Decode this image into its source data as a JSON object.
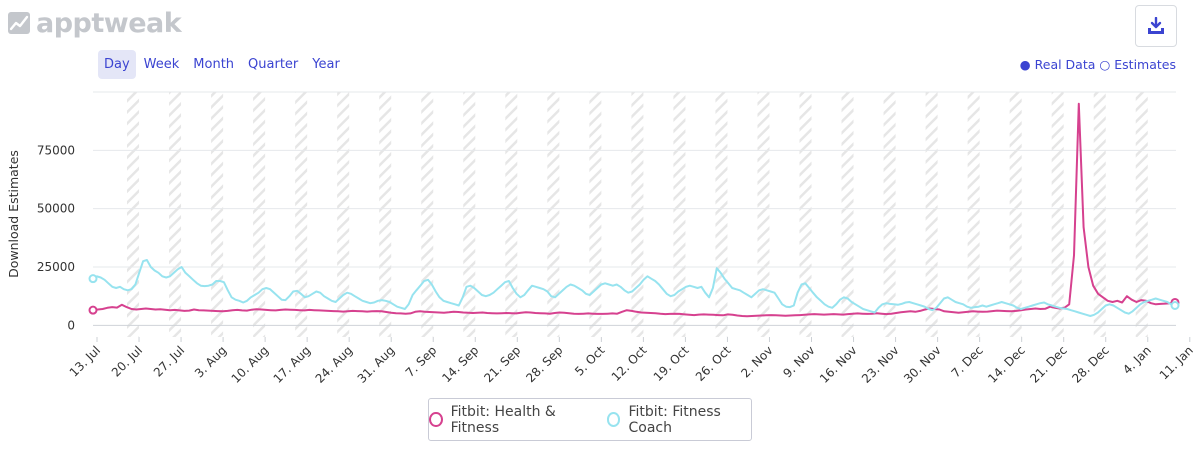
{
  "brand": {
    "name": "apptweak"
  },
  "toolbar": {
    "periods": [
      "Day",
      "Week",
      "Month",
      "Quarter",
      "Year"
    ],
    "active_period": "Day",
    "download_icon": "download-icon"
  },
  "legend_note": {
    "real": "● Real Data",
    "est": "○ Estimates"
  },
  "colors": {
    "fitbit": "#d6418f",
    "coach": "#97e3ef",
    "accent": "#3b44d1"
  },
  "chart_data": {
    "type": "line",
    "ylabel": "Download Estimates",
    "yticks": [
      0,
      25000,
      50000,
      75000
    ],
    "ylim": [
      -5000,
      100000
    ],
    "xlabel": "",
    "xticks": [
      "13. Jul",
      "20. Jul",
      "27. Jul",
      "3. Aug",
      "10. Aug",
      "17. Aug",
      "24. Aug",
      "31. Aug",
      "7. Sep",
      "14. Sep",
      "21. Sep",
      "28. Sep",
      "5. Oct",
      "12. Oct",
      "19. Oct",
      "26. Oct",
      "2. Nov",
      "9. Nov",
      "16. Nov",
      "23. Nov",
      "30. Nov",
      "7. Dec",
      "14. Dec",
      "21. Dec",
      "28. Dec",
      "4. Jan",
      "11. Jan"
    ],
    "x_start": "13. Jul",
    "x_end": "12. Jan",
    "series": [
      {
        "name": "Fitbit: Health & Fitness",
        "color": "#d6418f",
        "values": [
          6500,
          6800,
          7000,
          7500,
          7800,
          7600,
          8800,
          7800,
          7000,
          6800,
          7000,
          7200,
          7000,
          6800,
          6900,
          6700,
          6500,
          6600,
          6400,
          6200,
          6300,
          6800,
          6500,
          6400,
          6300,
          6200,
          6100,
          6000,
          6200,
          6500,
          6600,
          6400,
          6300,
          6700,
          6900,
          6800,
          6600,
          6500,
          6400,
          6600,
          6800,
          6700,
          6600,
          6500,
          6400,
          6600,
          6500,
          6400,
          6300,
          6200,
          6100,
          6000,
          5900,
          6000,
          6200,
          6100,
          6000,
          5900,
          6000,
          6100,
          6000,
          5700,
          5400,
          5200,
          5100,
          5000,
          5100,
          5800,
          6000,
          5800,
          5700,
          5600,
          5500,
          5400,
          5600,
          5800,
          5700,
          5500,
          5400,
          5300,
          5400,
          5500,
          5300,
          5200,
          5100,
          5200,
          5300,
          5200,
          5100,
          5400,
          5600,
          5500,
          5300,
          5200,
          5100,
          5000,
          5300,
          5500,
          5400,
          5200,
          5000,
          4900,
          5000,
          5100,
          5000,
          4900,
          4900,
          5000,
          5100,
          5000,
          5800,
          6500,
          6200,
          5800,
          5500,
          5400,
          5300,
          5200,
          5000,
          4800,
          4900,
          5000,
          4900,
          4700,
          4500,
          4400,
          4600,
          4700,
          4600,
          4500,
          4400,
          4300,
          4700,
          4500,
          4200,
          4000,
          3900,
          4000,
          4100,
          4200,
          4300,
          4400,
          4300,
          4200,
          4100,
          4200,
          4300,
          4400,
          4500,
          4700,
          4800,
          4700,
          4600,
          4700,
          4800,
          4700,
          4600,
          4800,
          5000,
          5100,
          5000,
          4900,
          5000,
          5200,
          5000,
          4800,
          5000,
          5300,
          5600,
          5800,
          6000,
          5800,
          6200,
          6800,
          7200,
          7000,
          6800,
          6000,
          5800,
          5600,
          5400,
          5600,
          5800,
          6000,
          5900,
          5800,
          5900,
          6100,
          6300,
          6200,
          6100,
          6000,
          6200,
          6500,
          6800,
          7000,
          7200,
          7000,
          7100,
          8000,
          7500,
          7200,
          7500,
          9000,
          30000,
          95000,
          42000,
          25000,
          17000,
          13500,
          12000,
          10500,
          10000,
          10500,
          9800,
          12500,
          11000,
          10000,
          10800,
          10500,
          9500,
          9000,
          9200,
          9300,
          9500,
          9800
        ],
        "endpoint_markers": true
      },
      {
        "name": "Fitbit: Fitness Coach",
        "color": "#97e3ef",
        "values": [
          20000,
          21000,
          20500,
          19500,
          18000,
          16500,
          16000,
          16500,
          15500,
          15000,
          15500,
          17500,
          22500,
          27500,
          28000,
          25000,
          23500,
          22500,
          21000,
          20500,
          21000,
          22500,
          24000,
          25000,
          22500,
          21000,
          19500,
          18000,
          17000,
          16800,
          17000,
          17500,
          19000,
          19000,
          18500,
          15000,
          12000,
          11000,
          10500,
          9800,
          10500,
          12000,
          13000,
          14000,
          15500,
          16000,
          15500,
          14000,
          12500,
          11000,
          10800,
          12500,
          14500,
          14800,
          13500,
          12000,
          12500,
          13500,
          14500,
          14000,
          12500,
          11500,
          10500,
          10000,
          11500,
          13000,
          14000,
          13500,
          12500,
          11500,
          10500,
          10000,
          9500,
          9800,
          10500,
          10800,
          10500,
          10000,
          9000,
          8000,
          7500,
          7000,
          9000,
          13000,
          15000,
          17000,
          19000,
          19500,
          17500,
          14500,
          12000,
          10500,
          10000,
          9500,
          9000,
          8500,
          12000,
          16500,
          17000,
          16000,
          14500,
          13000,
          12500,
          13000,
          14000,
          15500,
          17000,
          18500,
          19000,
          16000,
          13500,
          12000,
          13000,
          15000,
          17000,
          16500,
          16000,
          15500,
          14500,
          12500,
          12000,
          13500,
          15000,
          16500,
          17500,
          17000,
          16000,
          15000,
          13500,
          13000,
          14500,
          16000,
          17500,
          18000,
          17500,
          17000,
          17500,
          16500,
          15000,
          14000,
          14500,
          16000,
          17500,
          19500,
          21000,
          20000,
          19000,
          17500,
          15500,
          13500,
          12500,
          13000,
          14500,
          15500,
          16500,
          17000,
          16500,
          16000,
          16500,
          14000,
          12000,
          16000,
          24500,
          22500,
          20000,
          18000,
          16000,
          15500,
          15000,
          14000,
          13000,
          12000,
          13500,
          15000,
          15500,
          15000,
          14500,
          14000,
          11500,
          9000,
          8000,
          7800,
          8500,
          14000,
          17500,
          18000,
          16000,
          14000,
          12000,
          10500,
          9000,
          8000,
          7500,
          9000,
          11000,
          12000,
          11500,
          10000,
          9000,
          8000,
          7000,
          6500,
          6000,
          5500,
          7500,
          9000,
          9500,
          9200,
          9000,
          8800,
          9200,
          9800,
          10000,
          9500,
          9000,
          8500,
          8000,
          7000,
          6500,
          7500,
          9500,
          11500,
          12000,
          11000,
          10000,
          9500,
          9000,
          8000,
          7500,
          7800,
          8000,
          8500,
          8000,
          8500,
          9000,
          9500,
          10000,
          9500,
          9000,
          8500,
          7500,
          7000,
          7500,
          8000,
          8500,
          9000,
          9500,
          9800,
          9000,
          8500,
          8000,
          7500,
          7200,
          7000,
          6500,
          6000,
          5500,
          5000,
          4500,
          4000,
          4500,
          5500,
          7000,
          8500,
          9000,
          8500,
          7500,
          6500,
          5500,
          5000,
          6000,
          7500,
          9000,
          10000,
          10500,
          11000,
          11500,
          11000,
          10500,
          10000,
          9000,
          8500
        ],
        "endpoint_markers": true
      }
    ]
  }
}
